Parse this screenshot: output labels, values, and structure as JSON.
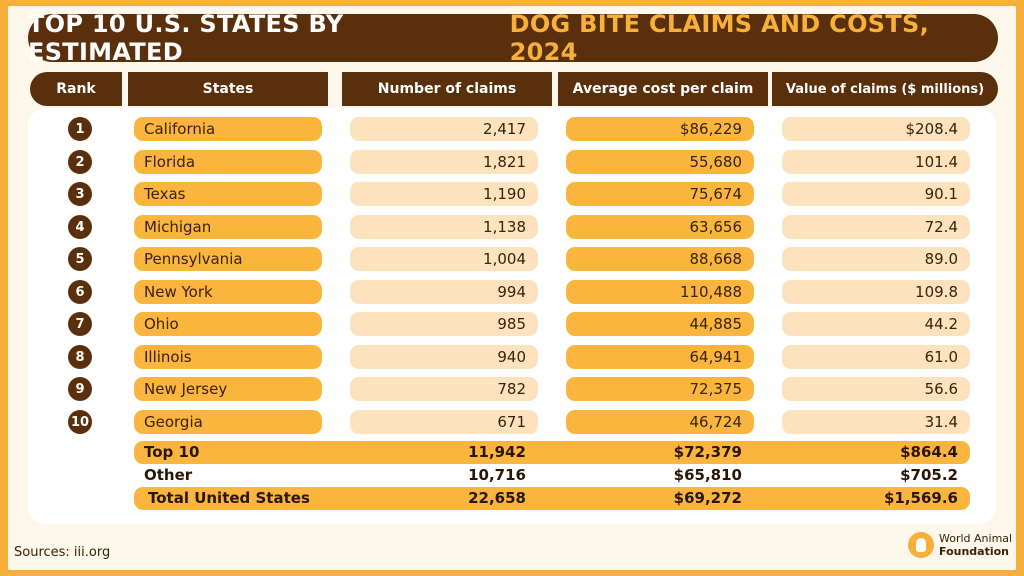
{
  "title": {
    "part1": "TOP 10 U.S. STATES BY ESTIMATED",
    "part2": "DOG BITE CLAIMS AND COSTS, 2024"
  },
  "headers": {
    "rank": "Rank",
    "states": "States",
    "claims": "Number of claims",
    "avg_cost": "Average cost per claim",
    "value": "Value of claims ($ millions)"
  },
  "rows": [
    {
      "rank": "1",
      "state": "California",
      "claims": "2,417",
      "avg_cost": "$86,229",
      "value": "$208.4"
    },
    {
      "rank": "2",
      "state": "Florida",
      "claims": "1,821",
      "avg_cost": "55,680",
      "value": "101.4"
    },
    {
      "rank": "3",
      "state": "Texas",
      "claims": "1,190",
      "avg_cost": "75,674",
      "value": "90.1"
    },
    {
      "rank": "4",
      "state": "Michigan",
      "claims": "1,138",
      "avg_cost": "63,656",
      "value": "72.4"
    },
    {
      "rank": "5",
      "state": "Pennsylvania",
      "claims": "1,004",
      "avg_cost": "88,668",
      "value": "89.0"
    },
    {
      "rank": "6",
      "state": "New York",
      "claims": "994",
      "avg_cost": "110,488",
      "value": "109.8"
    },
    {
      "rank": "7",
      "state": "Ohio",
      "claims": "985",
      "avg_cost": "44,885",
      "value": "44.2"
    },
    {
      "rank": "8",
      "state": "Illinois",
      "claims": "940",
      "avg_cost": "64,941",
      "value": "61.0"
    },
    {
      "rank": "9",
      "state": "New Jersey",
      "claims": "782",
      "avg_cost": "72,375",
      "value": "56.6"
    },
    {
      "rank": "10",
      "state": "Georgia",
      "claims": "671",
      "avg_cost": "46,724",
      "value": "31.4"
    }
  ],
  "summary": [
    {
      "label": "Top 10",
      "claims": "11,942",
      "avg_cost": "$72,379",
      "value": "$864.4"
    },
    {
      "label": "Other",
      "claims": "10,716",
      "avg_cost": "$65,810",
      "value": "$705.2"
    },
    {
      "label": "Total United States",
      "claims": "22,658",
      "avg_cost": "$69,272",
      "value": "$1,569.6"
    }
  ],
  "footer": {
    "sources": "Sources: iii.org",
    "logo_line1": "World Animal",
    "logo_line2": "Foundation"
  },
  "colors": {
    "brown": "#5a2f0c",
    "orange": "#f9b53e",
    "light": "#fde3bd",
    "border": "#f7b13a"
  }
}
